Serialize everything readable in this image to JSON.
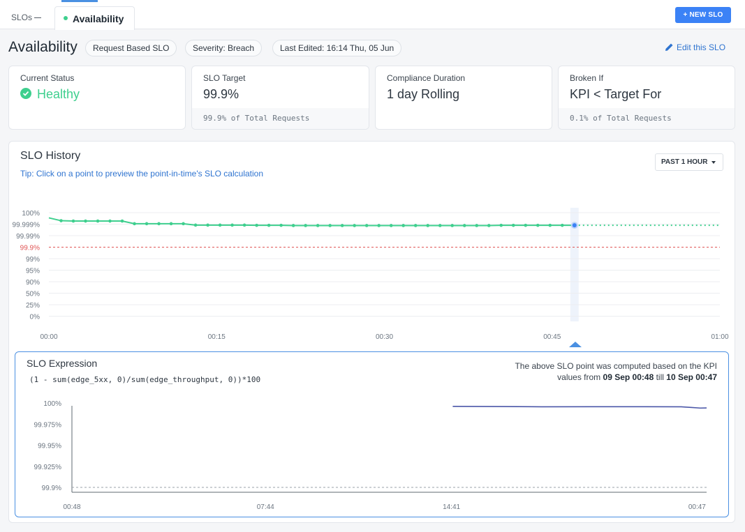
{
  "tabs": {
    "parent_label": "SLOs",
    "active_label": "Availability",
    "new_button": "+ NEW SLO"
  },
  "header": {
    "title": "Availability",
    "pills": [
      "Request Based SLO",
      "Severity: Breach",
      "Last Edited: 16:14 Thu, 05 Jun"
    ],
    "edit_label": "Edit this SLO"
  },
  "cards": [
    {
      "label": "Current Status",
      "value": "Healthy",
      "footer": ""
    },
    {
      "label": "SLO Target",
      "value": "99.9%",
      "footer": "99.9% of Total Requests"
    },
    {
      "label": "Compliance Duration",
      "value": "1 day Rolling",
      "footer": ""
    },
    {
      "label": "Broken If",
      "value": "KPI < Target For",
      "footer": "0.1% of Total Requests"
    }
  ],
  "history": {
    "title": "SLO History",
    "tip": "Tip: Click on a point to preview the point-in-time's SLO calculation",
    "range_label": "PAST 1 HOUR"
  },
  "expression": {
    "title": "SLO Expression",
    "code": "(1 - sum(edge_5xx, 0)/sum(edge_throughput, 0))*100",
    "note_prefix": "The above SLO point was computed based on the KPI values from",
    "from": "09 Sep 00:48",
    "till_word": "till",
    "till": "10 Sep 00:47"
  },
  "colors": {
    "accent": "#3b82f6",
    "healthy": "#3ecf8e",
    "target_line": "#e05555",
    "kpi_line": "#4b57a8"
  },
  "chart_data": [
    {
      "type": "line",
      "title": "SLO History",
      "y_tick_labels": [
        "100%",
        "99.999%",
        "99.99%",
        "99.9%",
        "99%",
        "95%",
        "90%",
        "50%",
        "25%",
        "0%"
      ],
      "x_tick_labels": [
        "00:00",
        "00:15",
        "00:30",
        "00:45",
        "01:00"
      ],
      "target_label": "99.9%",
      "grid": true,
      "series": [
        {
          "values_tick_index": [
            0.45,
            0.7,
            0.73,
            0.73,
            0.73,
            0.73,
            0.73,
            0.96,
            0.96,
            0.96,
            0.96,
            0.96,
            1.08,
            1.08,
            1.08,
            1.08,
            1.08,
            1.1,
            1.1,
            1.1,
            1.12,
            1.12,
            1.12,
            1.12,
            1.12,
            1.12,
            1.12,
            1.12,
            1.12,
            1.12,
            1.12,
            1.12,
            1.12,
            1.12,
            1.12,
            1.12,
            1.12,
            1.1,
            1.1,
            1.1,
            1.1,
            1.1,
            1.1,
            1.1
          ],
          "selected_minute": 47
        }
      ]
    },
    {
      "type": "line",
      "title": "SLO Expression",
      "y_tick_labels": [
        "100%",
        "99.975%",
        "99.95%",
        "99.925%",
        "99.9%"
      ],
      "ylim": [
        99.9,
        100
      ],
      "x_tick_labels": [
        "00:48",
        "07:44",
        "14:41",
        "00:47"
      ],
      "target_value": 99.9,
      "series": [
        {
          "x_fraction": [
            0.6,
            0.68,
            0.74,
            0.82,
            0.9,
            0.96,
            0.975,
            0.99,
            1.0
          ],
          "values": [
            99.996,
            99.9958,
            99.9955,
            99.9956,
            99.9956,
            99.9955,
            99.9948,
            99.994,
            99.9942
          ]
        }
      ]
    }
  ]
}
